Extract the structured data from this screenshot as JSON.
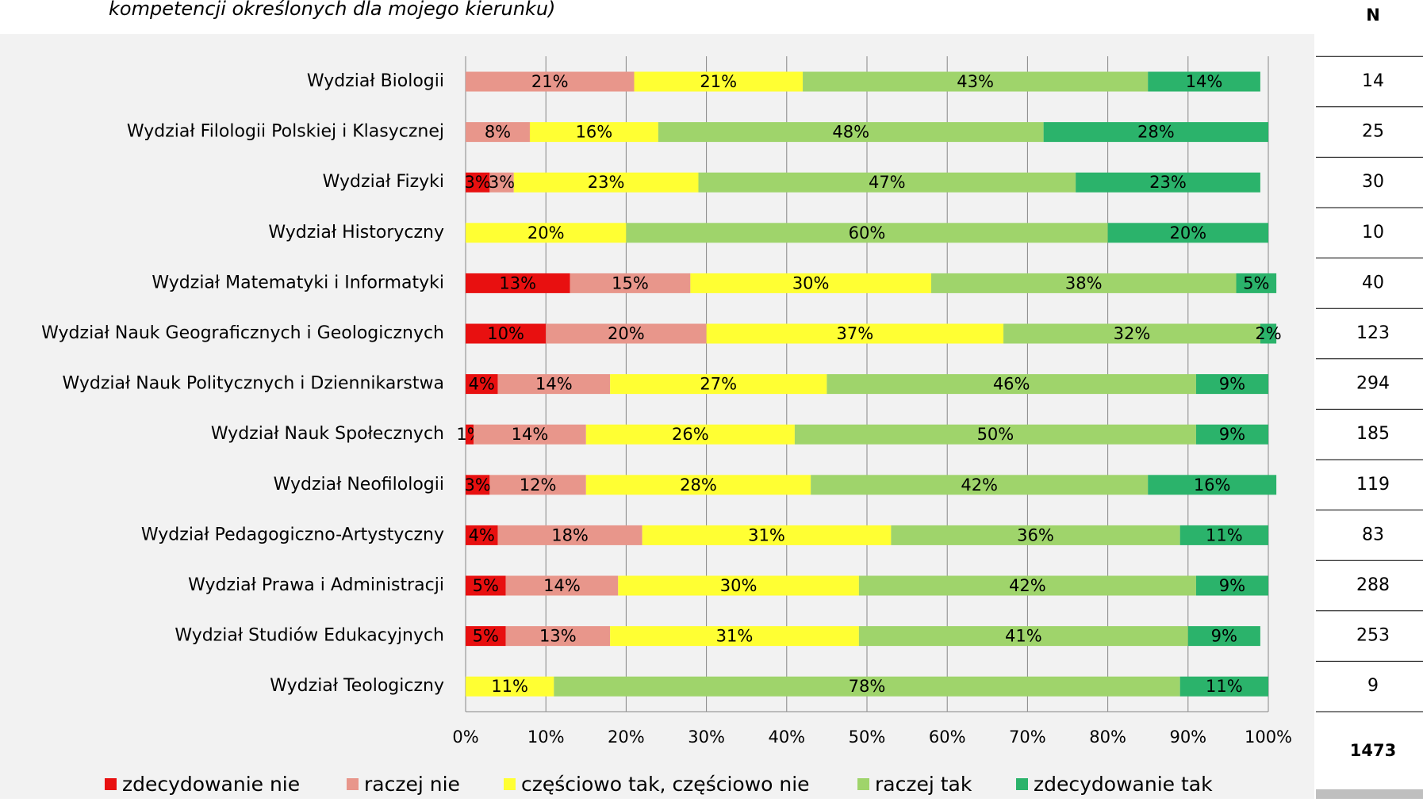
{
  "chart_data": {
    "type": "bar",
    "orientation": "horizontal",
    "stacked": true,
    "title": "kompetencji określonych dla mojego kierunku)",
    "categories": [
      "Wydział Biologii",
      "Wydział Filologii Polskiej i Klasycznej",
      "Wydział Fizyki",
      "Wydział Historyczny",
      "Wydział Matematyki i Informatyki",
      "Wydział Nauk Geograficznych i Geologicznych",
      "Wydział Nauk Politycznych i Dziennikarstwa",
      "Wydział Nauk Społecznych",
      "Wydział Neofilologii",
      "Wydział Pedagogiczno-Artystyczny",
      "Wydział Prawa i Administracji",
      "Wydział Studiów Edukacyjnych",
      "Wydział Teologiczny"
    ],
    "series": [
      {
        "name": "zdecydowanie nie",
        "color": "#e81010",
        "values": [
          null,
          null,
          3,
          null,
          13,
          10,
          4,
          1,
          3,
          4,
          5,
          5,
          null
        ],
        "value_labels": [
          null,
          null,
          "3%",
          null,
          "13%",
          "10%",
          "4%",
          "1%",
          "3%",
          "4%",
          "5%",
          "5%",
          null
        ]
      },
      {
        "name": "raczej  nie",
        "color": "#e8968b",
        "values": [
          21,
          8,
          3,
          null,
          15,
          20,
          14,
          14,
          12,
          18,
          14,
          13,
          null
        ],
        "value_labels": [
          "21%",
          "8%",
          "3%",
          null,
          "15%",
          "20%",
          "14%",
          "14%",
          "12%",
          "18%",
          "14%",
          "13%",
          null
        ]
      },
      {
        "name": "częściowo tak, częściowo nie",
        "color": "#ffff33",
        "values": [
          21,
          16,
          23,
          20,
          30,
          37,
          27,
          26,
          28,
          31,
          30,
          31,
          11
        ],
        "value_labels": [
          "21%",
          "16%",
          "23%",
          "20%",
          "30%",
          "37%",
          "27%",
          "26%",
          "28%",
          "31%",
          "30%",
          "31%",
          "11%"
        ]
      },
      {
        "name": "raczej tak",
        "color": "#9fd46b",
        "values": [
          43,
          48,
          47,
          60,
          38,
          32,
          46,
          50,
          42,
          36,
          42,
          41,
          78
        ],
        "value_labels": [
          "43%",
          "48%",
          "47%",
          "60%",
          "38%",
          "32%",
          "46%",
          "50%",
          "42%",
          "36%",
          "42%",
          "41%",
          "78%"
        ]
      },
      {
        "name": "zdecydowanie tak",
        "color": "#2bb36b",
        "values": [
          14,
          28,
          23,
          20,
          5,
          2,
          9,
          9,
          16,
          11,
          9,
          9,
          11
        ],
        "value_labels": [
          "14%",
          "28%",
          "23%",
          "20%",
          "5%",
          "2%",
          "9%",
          "9%",
          "16%",
          "11%",
          "9%",
          "9%",
          "11%"
        ]
      }
    ],
    "xlim": [
      0,
      100
    ],
    "xticks": [
      {
        "value": 0,
        "label": "0%"
      },
      {
        "value": 10,
        "label": "10%"
      },
      {
        "value": 20,
        "label": "20%"
      },
      {
        "value": 30,
        "label": "30%"
      },
      {
        "value": 40,
        "label": "40%"
      },
      {
        "value": 50,
        "label": "50%"
      },
      {
        "value": 60,
        "label": "60%"
      },
      {
        "value": 70,
        "label": "70%"
      },
      {
        "value": 80,
        "label": "80%"
      },
      {
        "value": 90,
        "label": "90%"
      },
      {
        "value": 100,
        "label": "100%"
      }
    ],
    "grid": true,
    "legend": "bottom",
    "n_header": "N",
    "n_values": [
      14,
      25,
      30,
      10,
      40,
      123,
      294,
      185,
      119,
      83,
      288,
      253,
      9
    ],
    "n_total": 1473
  }
}
